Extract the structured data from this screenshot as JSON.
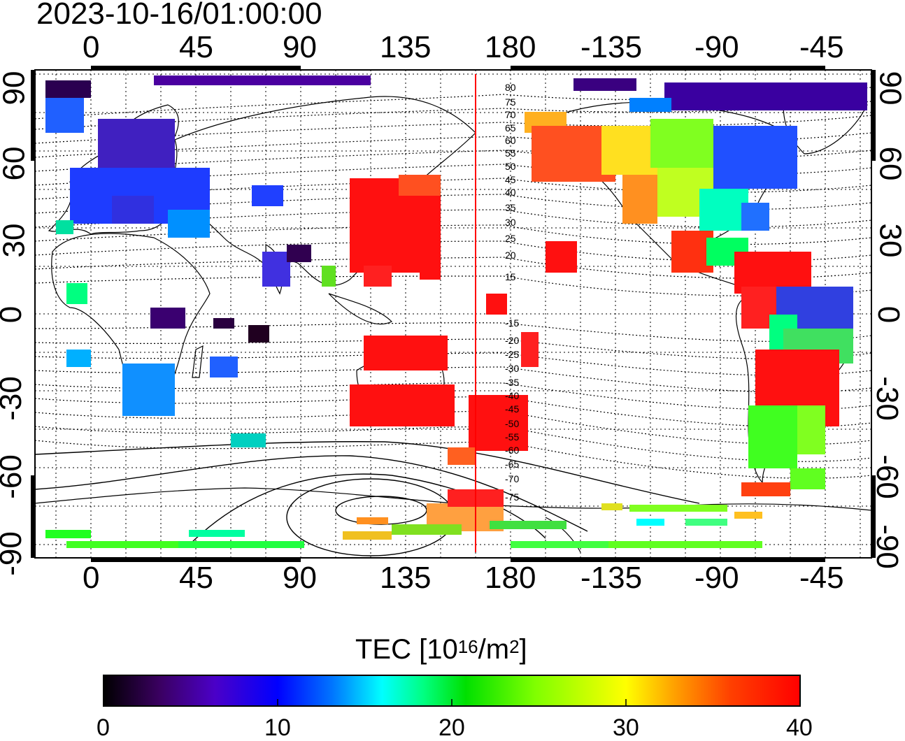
{
  "title": "2023-10-16/01:00:00",
  "map": {
    "top_axis_labels": [
      "0",
      "45",
      "90",
      "135",
      "180",
      "-135",
      "-90",
      "-45"
    ],
    "bottom_axis_labels": [
      "0",
      "45",
      "90",
      "135",
      "180",
      "-135",
      "-90",
      "-45"
    ],
    "left_axis_labels": [
      "90",
      "60",
      "30",
      "0",
      "-30",
      "-60",
      "-90"
    ],
    "right_axis_labels": [
      "90",
      "60",
      "30",
      "0",
      "-30",
      "-60",
      "-90"
    ],
    "contour_labels": [
      "80",
      "75",
      "70",
      "65",
      "60",
      "55",
      "50",
      "45",
      "40",
      "35",
      "30",
      "25",
      "20",
      "15",
      "-15",
      "-20",
      "-25",
      "-30",
      "-35",
      "-40",
      "-45",
      "-50",
      "-55",
      "-60",
      "-65",
      "-70",
      "-75"
    ],
    "terminator_color": "#ff0000"
  },
  "colorbar": {
    "title_main": "TEC  [10",
    "title_sup1": "16",
    "title_mid": "/m",
    "title_sup2": "2",
    "title_end": "]",
    "ticks": [
      "0",
      "10",
      "20",
      "30",
      "40"
    ],
    "min": 0,
    "max": 40,
    "colormap": [
      "#000000",
      "#3a0060",
      "#4b00c8",
      "#0000ff",
      "#0078ff",
      "#00ffff",
      "#00ff80",
      "#00e000",
      "#80ff00",
      "#ffff00",
      "#ffa000",
      "#ff4000",
      "#ff0000"
    ]
  }
}
